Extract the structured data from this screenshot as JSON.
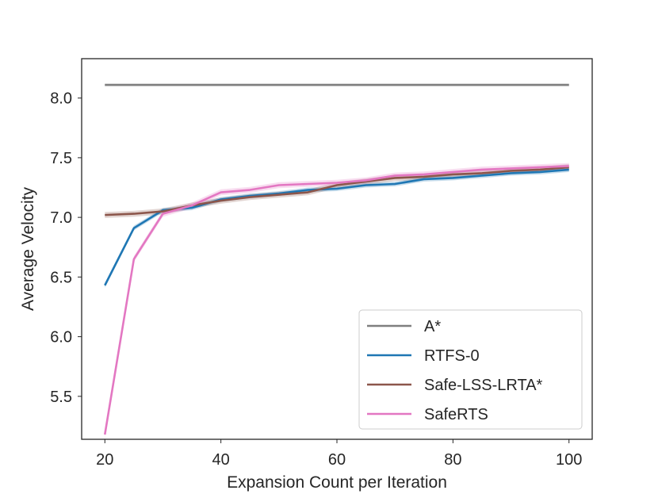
{
  "chart_data": {
    "type": "line",
    "title": "",
    "xlabel": "Expansion Count per Iteration",
    "ylabel": "Average Velocity",
    "xlim": [
      16,
      104
    ],
    "ylim": [
      5.14,
      8.33
    ],
    "xticks": [
      20,
      40,
      60,
      80,
      100
    ],
    "xtick_labels": [
      "20",
      "40",
      "60",
      "80",
      "100"
    ],
    "yticks": [
      5.5,
      6.0,
      6.5,
      7.0,
      7.5,
      8.0
    ],
    "ytick_labels": [
      "5.5",
      "6.0",
      "6.5",
      "7.0",
      "7.5",
      "8.0"
    ],
    "grid": false,
    "legend_position": "lower-right",
    "x": [
      20,
      25,
      30,
      35,
      40,
      45,
      50,
      55,
      60,
      65,
      70,
      75,
      80,
      85,
      90,
      95,
      100
    ],
    "series": [
      {
        "name": "A*",
        "color": "#7f7f7f",
        "values": [
          8.11,
          8.11,
          8.11,
          8.11,
          8.11,
          8.11,
          8.11,
          8.11,
          8.11,
          8.11,
          8.11,
          8.11,
          8.11,
          8.11,
          8.11,
          8.11,
          8.11
        ],
        "band": 0.01
      },
      {
        "name": "RTFS-0",
        "color": "#1f77b4",
        "values": [
          6.43,
          6.91,
          7.06,
          7.08,
          7.15,
          7.18,
          7.2,
          7.23,
          7.24,
          7.27,
          7.28,
          7.32,
          7.33,
          7.35,
          7.37,
          7.38,
          7.4
        ],
        "band": 0.02
      },
      {
        "name": "Safe-LSS-LRTA*",
        "color": "#8c564b",
        "values": [
          7.02,
          7.03,
          7.05,
          7.1,
          7.14,
          7.17,
          7.19,
          7.21,
          7.27,
          7.3,
          7.33,
          7.34,
          7.36,
          7.37,
          7.39,
          7.4,
          7.42
        ],
        "band": 0.025
      },
      {
        "name": "SafeRTS",
        "color": "#e377c2",
        "values": [
          5.18,
          6.65,
          7.03,
          7.1,
          7.21,
          7.23,
          7.27,
          7.28,
          7.29,
          7.31,
          7.35,
          7.36,
          7.38,
          7.4,
          7.41,
          7.42,
          7.43
        ],
        "band": 0.025
      }
    ]
  }
}
